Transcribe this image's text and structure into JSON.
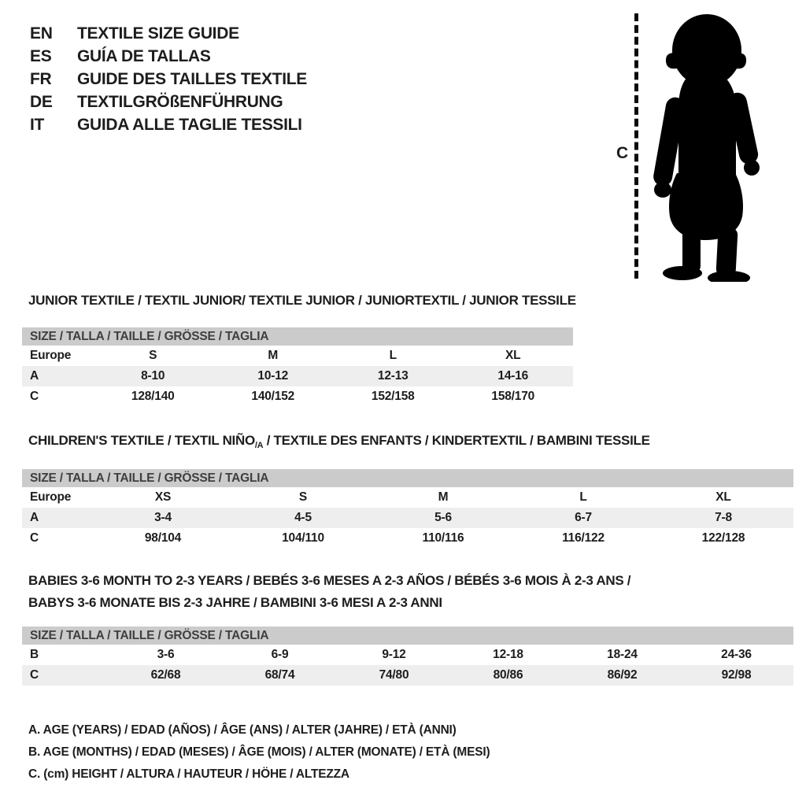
{
  "colors": {
    "header_bar_bg": "#cbcbcb",
    "header_bar_text": "#3f3f3f",
    "row_shaded_bg": "#efeeee",
    "text": "#1d1d1d",
    "silhouette": "#000000"
  },
  "languages": [
    {
      "code": "EN",
      "label": "TEXTILE SIZE GUIDE"
    },
    {
      "code": "ES",
      "label": "GUÍA DE TALLAS"
    },
    {
      "code": "FR",
      "label": "GUIDE DES TAILLES TEXTILE"
    },
    {
      "code": "DE",
      "label": "TEXTILGRÖßENFÜHRUNG"
    },
    {
      "code": "IT",
      "label": "GUIDA ALLE TAGLIE TESSILI"
    }
  ],
  "figure": {
    "icon": "baby-silhouette",
    "height_label": "C"
  },
  "sections": [
    {
      "id": "junior",
      "title_lines": [
        [
          {
            "text": "JUNIOR TEXTILE / TEXTIL JUNIOR/ TEXTILE JUNIOR / JUNIORTEXTIL / JUNIOR TESSILE"
          }
        ]
      ],
      "size_header": "SIZE / TALLA / TAILLE / GRÖSSE / TAGLIA",
      "rows": [
        {
          "label": "Europe",
          "shaded": false,
          "values": [
            "S",
            "M",
            "L",
            "XL"
          ]
        },
        {
          "label": "A",
          "shaded": true,
          "values": [
            "8-10",
            "10-12",
            "12-13",
            "14-16"
          ]
        },
        {
          "label": "C",
          "shaded": false,
          "values": [
            "128/140",
            "140/152",
            "152/158",
            "158/170"
          ]
        }
      ]
    },
    {
      "id": "children",
      "title_lines": [
        [
          {
            "text": "CHILDREN'S TEXTILE / TEXTIL NIÑO"
          },
          {
            "text": "/A",
            "sub": true
          },
          {
            "text": " / TEXTILE DES ENFANTS / KINDERTEXTIL / BAMBINI TESSILE"
          }
        ]
      ],
      "size_header": "SIZE / TALLA / TAILLE / GRÖSSE / TAGLIA",
      "rows": [
        {
          "label": "Europe",
          "shaded": false,
          "values": [
            "XS",
            "S",
            "M",
            "L",
            "XL"
          ]
        },
        {
          "label": "A",
          "shaded": true,
          "values": [
            "3-4",
            "4-5",
            "5-6",
            "6-7",
            "7-8"
          ]
        },
        {
          "label": "C",
          "shaded": false,
          "values": [
            "98/104",
            "104/110",
            "110/116",
            "116/122",
            "122/128"
          ]
        }
      ]
    },
    {
      "id": "babies",
      "title_lines": [
        [
          {
            "text": "BABIES 3-6 MONTH TO 2-3 YEARS / BEBÉS 3-6 MESES A 2-3 AÑOS / BÉBÉS 3-6 MOIS À 2-3 ANS /"
          }
        ],
        [
          {
            "text": "BABYS 3-6 MONATE BIS 2-3 JAHRE / BAMBINI 3-6 MESI A 2-3 ANNI"
          }
        ]
      ],
      "size_header": "SIZE / TALLA / TAILLE / GRÖSSE / TAGLIA",
      "rows": [
        {
          "label": "B",
          "shaded": false,
          "values": [
            "3-6",
            "6-9",
            "9-12",
            "12-18",
            "18-24",
            "24-36"
          ]
        },
        {
          "label": "C",
          "shaded": true,
          "values": [
            "62/68",
            "68/74",
            "74/80",
            "80/86",
            "86/92",
            "92/98"
          ]
        }
      ]
    }
  ],
  "legend": [
    "A. AGE (YEARS) / EDAD (AÑOS) / ÂGE (ANS) / ALTER (JAHRE) / ETÀ (ANNI)",
    "B. AGE (MONTHS) / EDAD (MESES) / ÂGE (MOIS) / ALTER (MONATE) / ETÀ (MESI)",
    "C. (cm) HEIGHT / ALTURA / HAUTEUR / HÖHE / ALTEZZA"
  ]
}
